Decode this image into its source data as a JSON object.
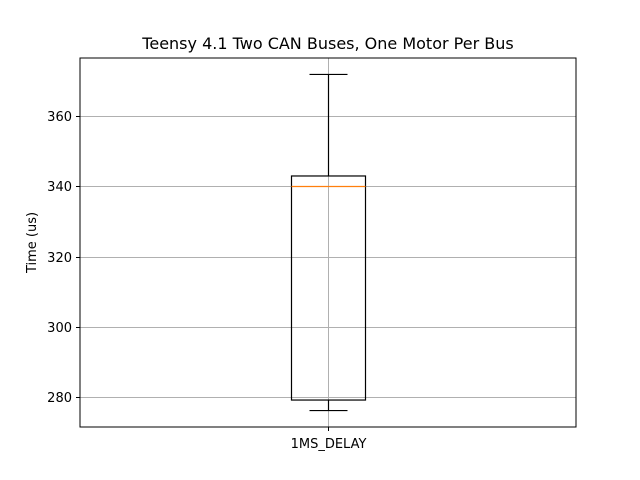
{
  "chart_data": {
    "type": "boxplot",
    "title": "Teensy 4.1 Two CAN Buses, One Motor Per Bus",
    "xlabel": "",
    "ylabel": "Time (us)",
    "categories": [
      "1MS_DELAY"
    ],
    "boxes": [
      {
        "category": "1MS_DELAY",
        "whisker_low": 276,
        "q1": 279,
        "median": 340,
        "q3": 343,
        "whisker_high": 372
      }
    ],
    "ylim": [
      271.3,
      376.7
    ],
    "yticks": [
      280,
      300,
      320,
      340,
      360
    ],
    "grid": true,
    "colors": {
      "box": "#000000",
      "median": "#ff7f0e",
      "grid": "#b0b0b0"
    }
  }
}
